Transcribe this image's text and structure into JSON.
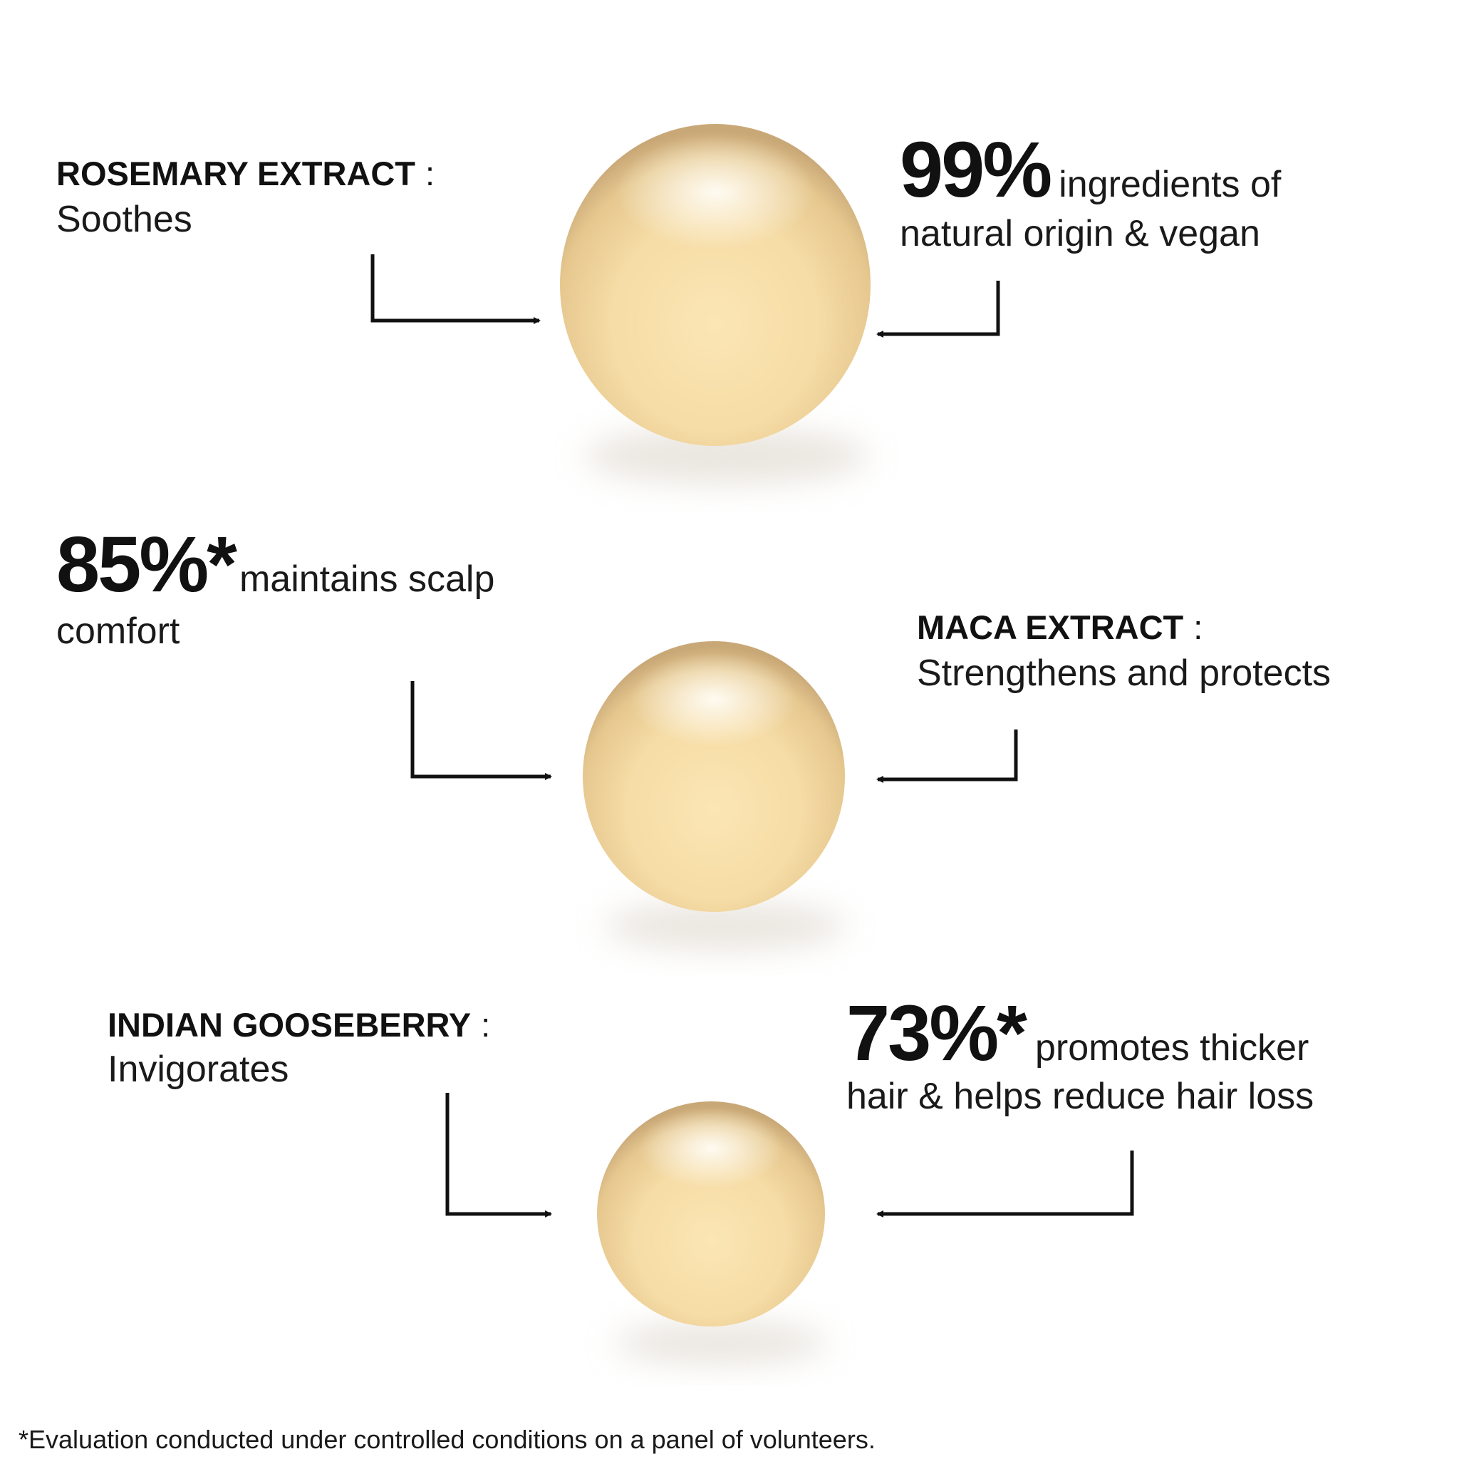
{
  "ingredients": [
    {
      "name": "ROSEMARY EXTRACT",
      "separator": ":",
      "benefit": "Soothes"
    },
    {
      "name": "MACA EXTRACT",
      "separator": ":",
      "benefit": "Strengthens and protects"
    },
    {
      "name": "INDIAN GOOSEBERRY",
      "separator": ":",
      "benefit": "Invigorates"
    }
  ],
  "claims": [
    {
      "figure": "99%",
      "line1": "ingredients of",
      "line2": "natural origin & vegan"
    },
    {
      "figure": "85%*",
      "line1": "maintains scalp",
      "line2": "comfort"
    },
    {
      "figure": "73%*",
      "line1": "promotes thicker",
      "line2": "hair & helps reduce hair loss"
    }
  ],
  "footnote": "*Evaluation conducted under controlled conditions on a panel of volunteers."
}
